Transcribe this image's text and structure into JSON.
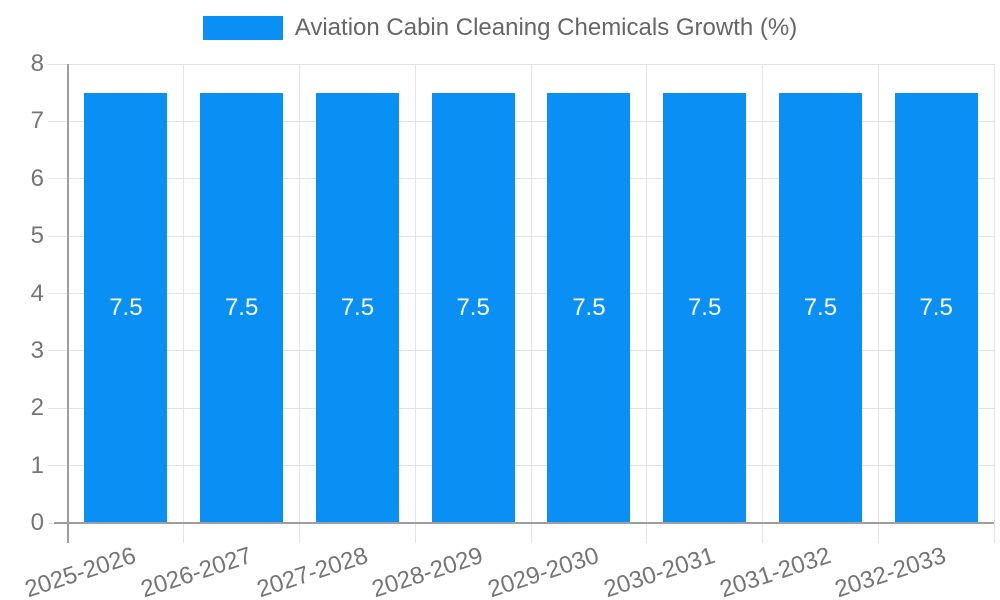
{
  "chart_data": {
    "type": "bar",
    "legend_label": "Aviation Cabin Cleaning Chemicals Growth (%)",
    "categories": [
      "2025-2026",
      "2026-2027",
      "2027-2028",
      "2028-2029",
      "2029-2030",
      "2030-2031",
      "2031-2032",
      "2032-2033"
    ],
    "values": [
      7.5,
      7.5,
      7.5,
      7.5,
      7.5,
      7.5,
      7.5,
      7.5
    ],
    "bar_value_labels": [
      "7.5",
      "7.5",
      "7.5",
      "7.5",
      "7.5",
      "7.5",
      "7.5",
      "7.5"
    ],
    "ylabel": "",
    "xlabel": "",
    "ylim": [
      0,
      8
    ],
    "yticks": [
      0,
      1,
      2,
      3,
      4,
      5,
      6,
      7,
      8
    ],
    "grid": true,
    "legend_position": "top-center",
    "colors": {
      "bar": "#0A90F5",
      "bar_label_text": "#FFFFFF",
      "legend_text": "#666666",
      "tick_text": "#757575",
      "gridline": "#E3E3E3",
      "axis_line": "#9E9E9E",
      "background": "#FFFFFF"
    }
  }
}
